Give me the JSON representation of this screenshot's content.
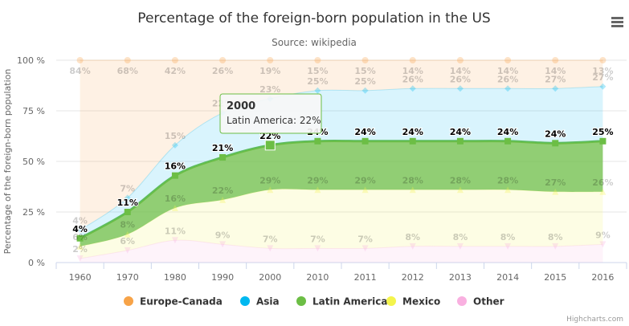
{
  "chart_data": {
    "type": "area",
    "stacking": "percent",
    "title": "Percentage of the foreign-born population in the US",
    "subtitle": "Source: wikipedia",
    "xlabel": "",
    "ylabel": "Percentage of the foreign-born population",
    "ylim": [
      0,
      100
    ],
    "yticks": [
      "0 %",
      "25 %",
      "50 %",
      "75 %",
      "100 %"
    ],
    "categories": [
      "1960",
      "1970",
      "1980",
      "1990",
      "2000",
      "2010",
      "2011",
      "2012",
      "2013",
      "2014",
      "2015",
      "2016"
    ],
    "grid": true,
    "legend_placement": "bottom",
    "series": [
      {
        "name": "Europe-Canada",
        "color": "#f7a348",
        "marker": "circle",
        "values": [
          84,
          68,
          42,
          26,
          19,
          15,
          15,
          14,
          14,
          14,
          14,
          13
        ]
      },
      {
        "name": "Asia",
        "color": "#00b8f0",
        "marker": "diamond",
        "values": [
          4,
          7,
          15,
          22,
          23,
          25,
          25,
          26,
          26,
          26,
          27,
          27
        ]
      },
      {
        "name": "Latin America",
        "color": "#6cbe45",
        "marker": "square",
        "values": [
          4,
          11,
          16,
          21,
          22,
          24,
          24,
          24,
          24,
          24,
          24,
          25
        ]
      },
      {
        "name": "Mexico",
        "color": "#f4f44c",
        "marker": "triangle",
        "values": [
          6,
          8,
          16,
          22,
          29,
          29,
          29,
          28,
          28,
          28,
          27,
          26
        ]
      },
      {
        "name": "Other",
        "color": "#f9b0e0",
        "marker": "triangle-down",
        "values": [
          2,
          6,
          11,
          9,
          7,
          7,
          7,
          8,
          8,
          8,
          8,
          9
        ]
      }
    ],
    "highlighted_series": "Latin America",
    "tooltip": {
      "title": "2000",
      "text": "Latin America: 22%"
    }
  },
  "credits": "Highcharts.com",
  "menu_icon": "hamburger-menu-icon"
}
